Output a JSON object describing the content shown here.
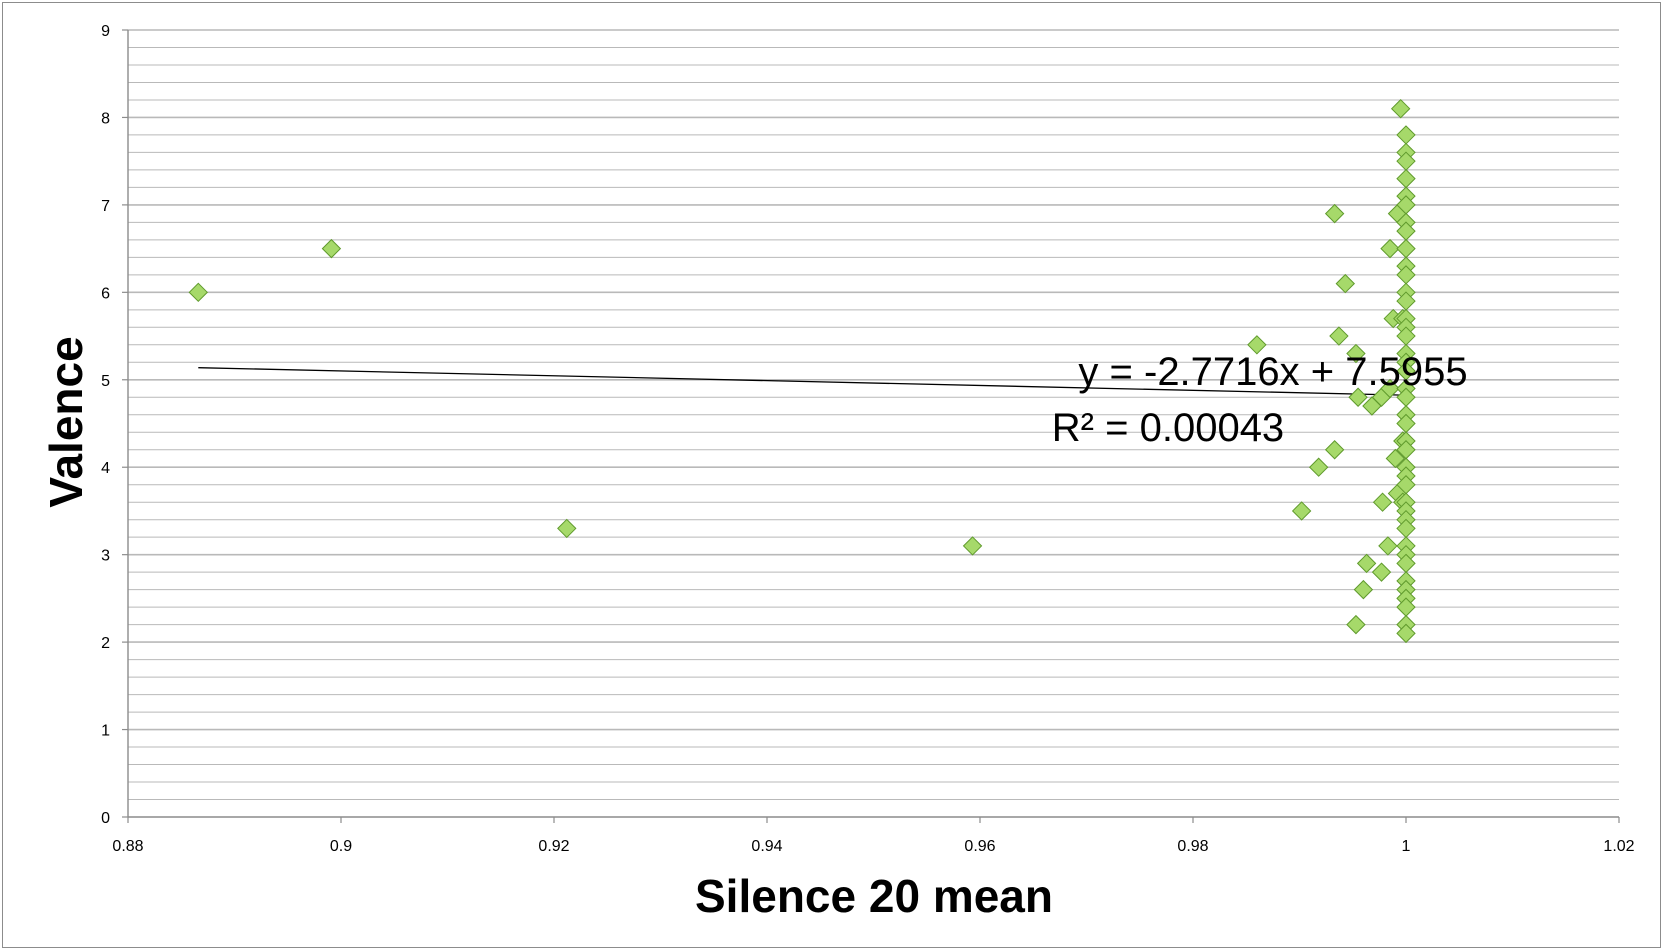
{
  "chart_data": {
    "type": "scatter",
    "title": "",
    "xlabel": "Silence 20 mean",
    "ylabel": "Valence",
    "xlim": [
      0.88,
      1.02
    ],
    "ylim": [
      0,
      9
    ],
    "x_ticks": [
      "0.88",
      "0.9",
      "0.92",
      "0.94",
      "0.96",
      "0.98",
      "1",
      "1.02"
    ],
    "y_ticks": [
      "0",
      "1",
      "2",
      "3",
      "4",
      "5",
      "6",
      "7",
      "8",
      "9"
    ],
    "grid": {
      "major_y": true,
      "minor_y_per_unit": 5
    },
    "marker": {
      "shape": "diamond",
      "fill": "#a6d96a",
      "stroke": "#5f9a2c"
    },
    "gridline_color": "#b9b9b9",
    "trendline": {
      "type": "linear",
      "slope": -2.7716,
      "intercept": 7.5955,
      "x_range": [
        0.8866,
        1.0
      ],
      "color": "#000000",
      "equation": "y = -2.7716x + 7.5955",
      "r_squared": "R² = 0.00043"
    },
    "series": [
      {
        "points": [
          [
            0.8866,
            6.0
          ],
          [
            0.8991,
            6.5
          ],
          [
            0.9212,
            3.3
          ],
          [
            0.9593,
            3.1
          ],
          [
            0.986,
            5.4
          ],
          [
            0.9902,
            3.5
          ],
          [
            0.9918,
            4.0
          ],
          [
            0.9933,
            6.9
          ],
          [
            0.9933,
            4.2
          ],
          [
            0.9937,
            5.5
          ],
          [
            0.9943,
            6.1
          ],
          [
            0.9953,
            5.3
          ],
          [
            0.9955,
            4.8
          ],
          [
            0.9953,
            2.2
          ],
          [
            0.996,
            2.6
          ],
          [
            0.9963,
            2.9
          ],
          [
            0.9968,
            4.7
          ],
          [
            0.9977,
            4.8
          ],
          [
            0.9977,
            2.8
          ],
          [
            0.9978,
            3.6
          ],
          [
            0.9983,
            3.1
          ],
          [
            0.9985,
            6.5
          ],
          [
            0.9985,
            4.9
          ],
          [
            0.9988,
            5.7
          ],
          [
            0.999,
            4.1
          ],
          [
            0.9992,
            6.9
          ],
          [
            0.9992,
            3.7
          ],
          [
            0.9995,
            8.1
          ],
          [
            0.9997,
            5.7
          ],
          [
            0.9997,
            4.3
          ],
          [
            0.9997,
            3.6
          ],
          [
            1.0,
            7.8
          ],
          [
            1.0,
            7.6
          ],
          [
            1.0,
            7.5
          ],
          [
            1.0,
            7.3
          ],
          [
            1.0,
            7.1
          ],
          [
            1.0,
            7.0
          ],
          [
            1.0,
            6.8
          ],
          [
            1.0,
            6.7
          ],
          [
            1.0,
            6.5
          ],
          [
            1.0,
            6.3
          ],
          [
            1.0,
            6.2
          ],
          [
            1.0,
            6.0
          ],
          [
            1.0,
            5.9
          ],
          [
            1.0,
            5.7
          ],
          [
            1.0,
            5.6
          ],
          [
            1.0,
            5.5
          ],
          [
            1.0,
            5.3
          ],
          [
            1.0,
            5.2
          ],
          [
            1.0,
            5.1
          ],
          [
            1.0,
            4.9
          ],
          [
            1.0,
            4.8
          ],
          [
            1.0,
            4.6
          ],
          [
            1.0,
            4.5
          ],
          [
            1.0,
            4.3
          ],
          [
            1.0,
            4.2
          ],
          [
            1.0,
            4.0
          ],
          [
            1.0,
            3.9
          ],
          [
            1.0,
            3.8
          ],
          [
            1.0,
            3.6
          ],
          [
            1.0,
            3.5
          ],
          [
            1.0,
            3.4
          ],
          [
            1.0,
            3.3
          ],
          [
            1.0,
            3.1
          ],
          [
            1.0,
            3.0
          ],
          [
            1.0,
            2.9
          ],
          [
            1.0,
            2.7
          ],
          [
            1.0,
            2.6
          ],
          [
            1.0,
            2.5
          ],
          [
            1.0,
            2.4
          ],
          [
            1.0,
            2.2
          ],
          [
            1.0,
            2.1
          ]
        ]
      }
    ]
  }
}
